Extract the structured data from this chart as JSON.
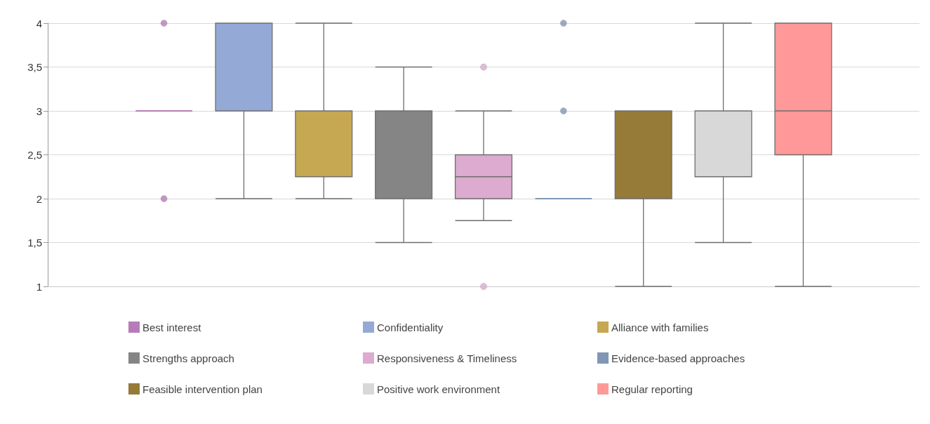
{
  "chart_data": {
    "type": "box",
    "categories": [
      null
    ],
    "ylim": [
      1,
      4
    ],
    "yticks": [
      1,
      {
        "value": 1.5,
        "label": "1,5"
      },
      2,
      {
        "value": 2.5,
        "label": "2,5"
      },
      3,
      {
        "value": 3.5,
        "label": "3,5"
      },
      4
    ],
    "grid": "y",
    "legend": "bottom",
    "series": [
      {
        "name": "Best interest",
        "color": "#b77cb7",
        "boxes": [
          {
            "low": 3,
            "q1": 3,
            "median": 3,
            "q3": 3,
            "high": 3,
            "outliers": [
              4,
              2
            ]
          }
        ]
      },
      {
        "name": "Confidentiality",
        "color": "#95a9d6",
        "boxes": [
          {
            "low": 2,
            "q1": 3,
            "median": 3,
            "q3": 4,
            "high": 4
          }
        ]
      },
      {
        "name": "Alliance with families",
        "color": "#c6a752",
        "boxes": [
          {
            "low": 2,
            "q1": 2.25,
            "median": 3,
            "q3": 3,
            "high": 4
          }
        ]
      },
      {
        "name": "Strengths approach",
        "color": "#858585",
        "boxes": [
          {
            "low": 1.5,
            "q1": 2,
            "median": 2,
            "q3": 3,
            "high": 3.5
          }
        ]
      },
      {
        "name": "Responsiveness & Timeliness",
        "color": "#dcabcf",
        "boxes": [
          {
            "low": 1.75,
            "q1": 2,
            "median": 2.25,
            "q3": 2.5,
            "high": 3,
            "outliers": [
              3.5,
              1
            ]
          }
        ]
      },
      {
        "name": "Evidence-based approaches",
        "color": "#7f97b5",
        "boxes": [
          {
            "low": 2,
            "q1": 2,
            "median": 2,
            "q3": 2,
            "high": 2,
            "outliers": [
              4,
              3
            ]
          }
        ]
      },
      {
        "name": "Feasible intervention plan",
        "color": "#957b37",
        "boxes": [
          {
            "low": 1,
            "q1": 2,
            "median": 3,
            "q3": 3,
            "high": 3
          }
        ]
      },
      {
        "name": "Positive work environment",
        "color": "#d8d8d8",
        "boxes": [
          {
            "low": 1.5,
            "q1": 2.25,
            "median": 3,
            "q3": 3,
            "high": 4
          }
        ]
      },
      {
        "name": "Regular reporting",
        "color": "#ff9999",
        "boxes": [
          {
            "low": 1,
            "q1": 2.5,
            "median": 3,
            "q3": 4,
            "high": 4
          }
        ]
      }
    ]
  }
}
